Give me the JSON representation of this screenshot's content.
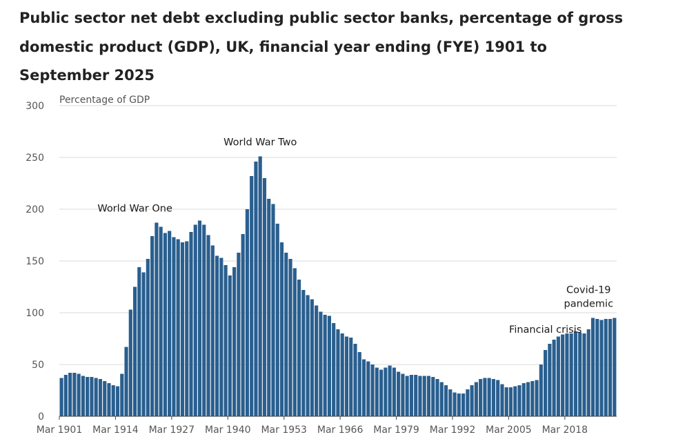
{
  "chart_data": {
    "type": "bar",
    "title": "Public sector net debt excluding public sector banks, percentage of gross domestic product (GDP), UK, financial year ending (FYE) 1901 to September 2025",
    "ylabel": "Percentage of GDP",
    "xlabel": "",
    "ylim": [
      0,
      300
    ],
    "yticks": [
      0,
      50,
      100,
      150,
      200,
      250,
      300
    ],
    "xtick_labels": [
      "Mar 1901",
      "Mar 1914",
      "Mar 1927",
      "Mar 1940",
      "Mar 1953",
      "Mar 1966",
      "Mar 1979",
      "Mar 1992",
      "Mar 2005",
      "Mar 2018"
    ],
    "grid": "horizontal",
    "color": "#2a5f8f",
    "x_start": 1901,
    "values": [
      37,
      40,
      42,
      42,
      41,
      39,
      38,
      38,
      37,
      36,
      34,
      32,
      30,
      29,
      41,
      67,
      103,
      125,
      144,
      139,
      152,
      174,
      187,
      183,
      177,
      179,
      173,
      171,
      168,
      169,
      178,
      185,
      189,
      185,
      175,
      165,
      155,
      153,
      146,
      136,
      144,
      158,
      176,
      200,
      232,
      246,
      251,
      230,
      210,
      205,
      186,
      168,
      158,
      152,
      143,
      132,
      122,
      117,
      113,
      107,
      101,
      98,
      97,
      90,
      84,
      80,
      77,
      76,
      70,
      62,
      55,
      53,
      50,
      47,
      45,
      47,
      49,
      47,
      43,
      41,
      39,
      40,
      40,
      39,
      39,
      39,
      38,
      36,
      33,
      30,
      26,
      23,
      22,
      22,
      26,
      30,
      33,
      36,
      37,
      37,
      36,
      35,
      31,
      28,
      28,
      29,
      30,
      32,
      33,
      34,
      35,
      50,
      64,
      70,
      74,
      77,
      79,
      80,
      80,
      82,
      81,
      80,
      84,
      95,
      94,
      93,
      94,
      94,
      95
    ],
    "annotations": [
      {
        "lines": [
          "World War One"
        ],
        "year": 1918
      },
      {
        "lines": [
          "World War Two"
        ],
        "year": 1947
      },
      {
        "lines": [
          "Financial crisis"
        ],
        "year": 2013
      },
      {
        "lines": [
          "Covid-19",
          "pandemic"
        ],
        "year": 2023
      }
    ]
  }
}
